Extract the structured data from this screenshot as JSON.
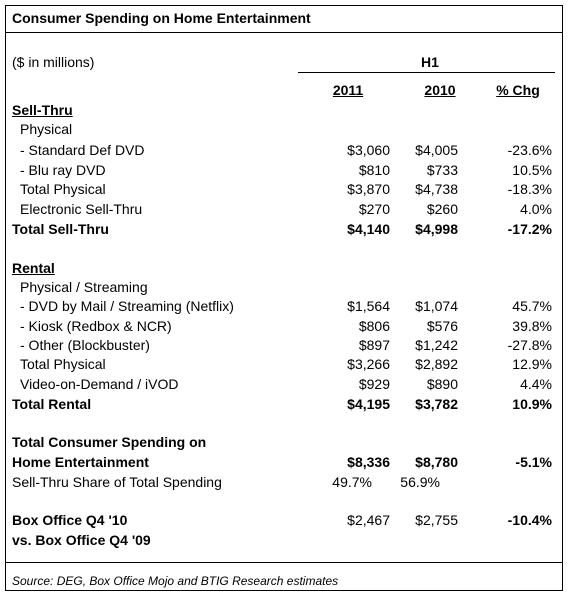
{
  "header": {
    "title": "Consumer Spending on Home Entertainment",
    "units": "($ in millions)",
    "period": "H1",
    "columns": [
      "2011",
      "2010",
      "% Chg"
    ]
  },
  "table": {
    "rows": [
      [
        "Sell-Thru"
      ],
      [
        "Physical"
      ],
      [
        "- Standard Def DVD",
        "$3,060",
        "$4,005",
        "-23.6%"
      ],
      [
        "- Blu ray DVD",
        "$810",
        "$733",
        "10.5%"
      ],
      [
        "Total Physical",
        "$3,870",
        "$4,738",
        "-18.3%"
      ],
      [
        "Electronic Sell-Thru",
        "$270",
        "$260",
        "4.0%"
      ],
      [
        "Total Sell-Thru",
        "$4,140",
        "$4,998",
        "-17.2%"
      ],
      [
        "Rental"
      ],
      [
        "Physical / Streaming"
      ],
      [
        "- DVD by Mail / Streaming (Netflix)",
        "$1,564",
        "$1,074",
        "45.7%"
      ],
      [
        "- Kiosk (Redbox & NCR)",
        "$806",
        "$576",
        "39.8%"
      ],
      [
        "- Other (Blockbuster)",
        "$897",
        "$1,242",
        "-27.8%"
      ],
      [
        "Total Physical",
        "$3,266",
        "$2,892",
        "12.9%"
      ],
      [
        "Video-on-Demand / iVOD",
        "$929",
        "$890",
        "4.4%"
      ],
      [
        "Total Rental",
        "$4,195",
        "$3,782",
        "10.9%"
      ],
      [
        "Total Consumer Spending on"
      ],
      [
        "Home Entertainment",
        "$8,336",
        "$8,780",
        "-5.1%"
      ],
      [
        "Sell-Thru Share of Total Spending",
        "49.7%",
        "56.9%"
      ],
      [
        "Box Office Q4 '10",
        "$2,467",
        "$2,755",
        "-10.4%"
      ],
      [
        "vs. Box Office Q4 '09"
      ]
    ]
  },
  "footer": {
    "source": "Source: DEG, Box Office Mojo and BTIG Research estimates"
  }
}
